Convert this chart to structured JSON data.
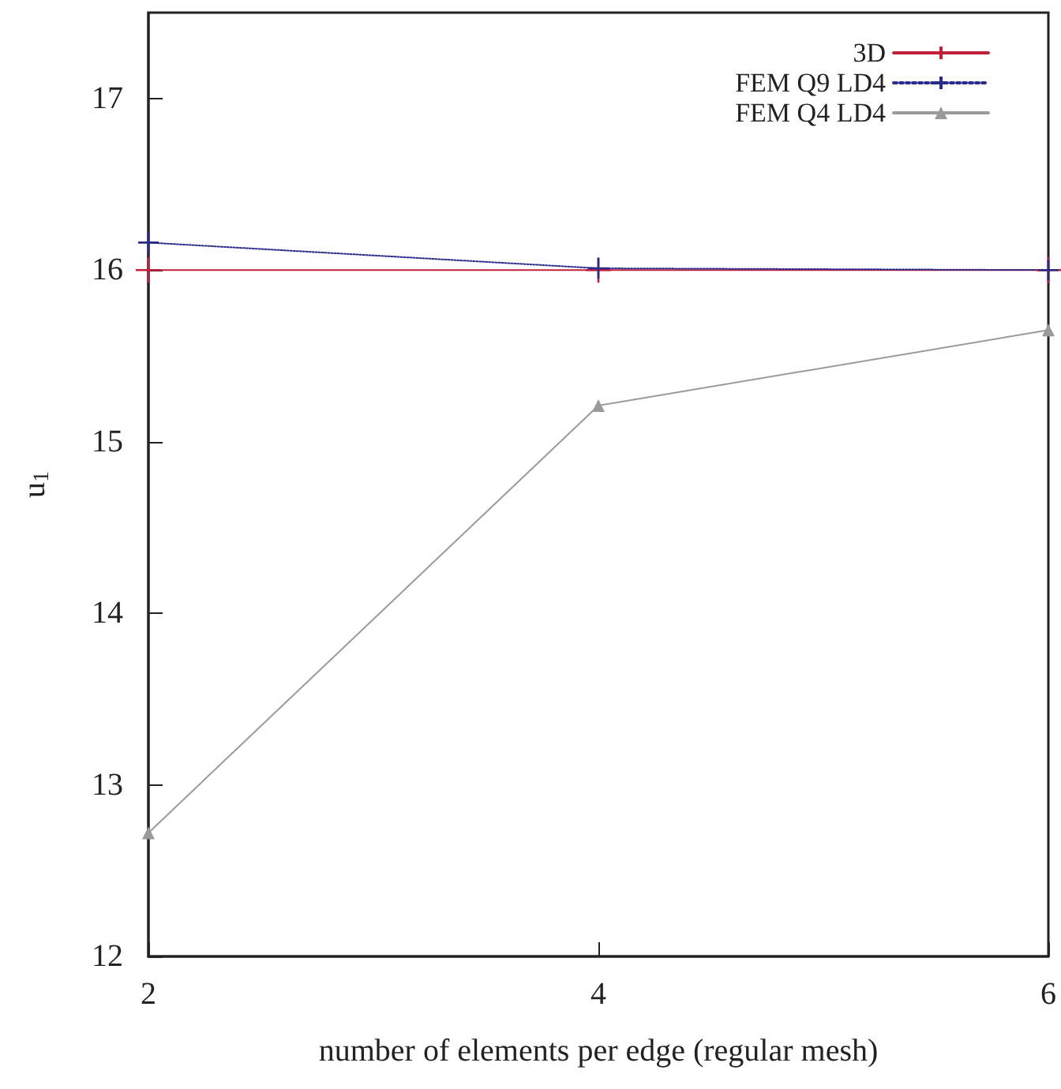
{
  "chart_data": {
    "type": "line",
    "xlabel": "number of elements per edge (regular mesh)",
    "ylabel": "u$_{1}$",
    "x": [
      2,
      4,
      6
    ],
    "series": [
      {
        "name": "3D",
        "color": "#c0203a",
        "values": [
          16.0,
          16.0,
          16.0
        ],
        "marker": "cross",
        "line_style": "solid"
      },
      {
        "name": "FEM Q9 LD4",
        "color": "#2a2a8a",
        "values": [
          16.16,
          16.01,
          16.0
        ],
        "marker": "cross",
        "line_style": "dotted"
      },
      {
        "name": "FEM Q4 LD4",
        "color": "#9a9a9a",
        "values": [
          12.72,
          15.21,
          15.65
        ],
        "marker": "triangle",
        "line_style": "solid"
      }
    ],
    "xlim": [
      2,
      6
    ],
    "xticks": [
      2,
      4,
      6
    ],
    "ylim": [
      12,
      17.5
    ],
    "yticks": [
      12,
      13,
      14,
      15,
      16,
      17
    ],
    "grid": false,
    "legend": "top right"
  }
}
